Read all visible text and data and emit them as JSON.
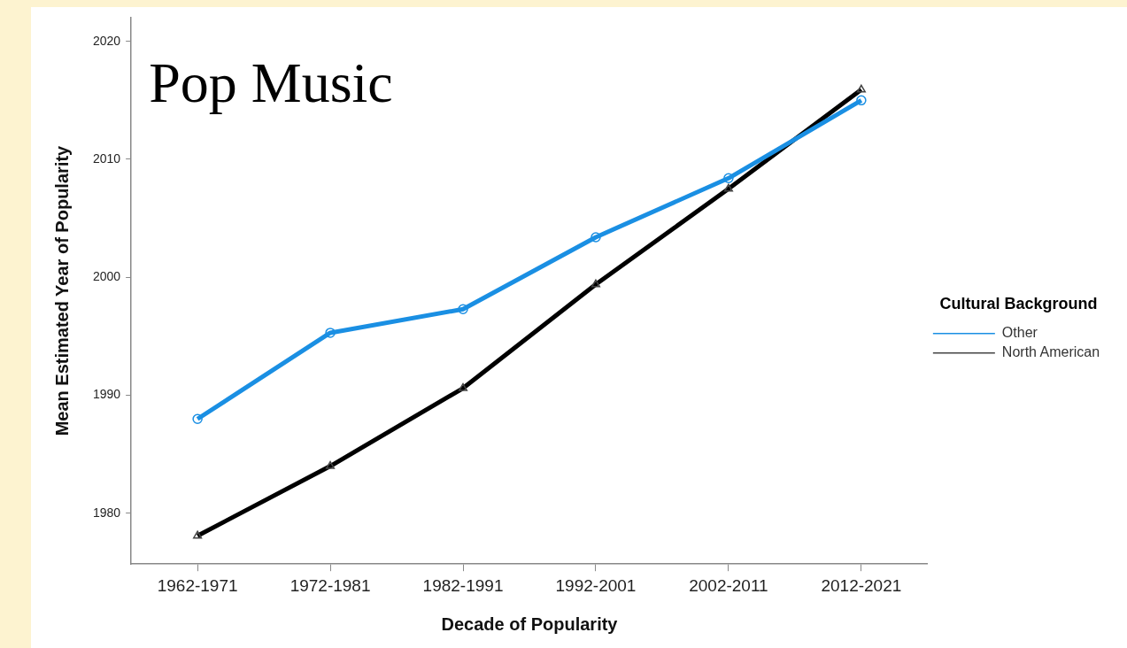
{
  "chart_data": {
    "type": "line",
    "title": "Pop Music",
    "xlabel": "Decade of Popularity",
    "ylabel": "Mean Estimated Year of Popularity",
    "legend_title": "Cultural Background",
    "categories": [
      "1962-1971",
      "1972-1981",
      "1982-1991",
      "1992-2001",
      "2002-2011",
      "2012-2021"
    ],
    "series": [
      {
        "name": "Other",
        "color": "#1a8fe3",
        "marker": "circle",
        "values": [
          1988.0,
          1995.3,
          1997.3,
          2003.4,
          2008.4,
          2015.0
        ]
      },
      {
        "name": "North American",
        "color": "#000000",
        "marker": "triangle",
        "values": [
          1978.1,
          1984.0,
          1990.6,
          1999.4,
          2007.5,
          2015.9
        ]
      }
    ],
    "ylim": [
      1975.7,
      2022
    ],
    "yticks": [
      1980,
      1990,
      2000,
      2010,
      2020
    ],
    "grid": false,
    "legend": "right",
    "line_style": "solid"
  }
}
